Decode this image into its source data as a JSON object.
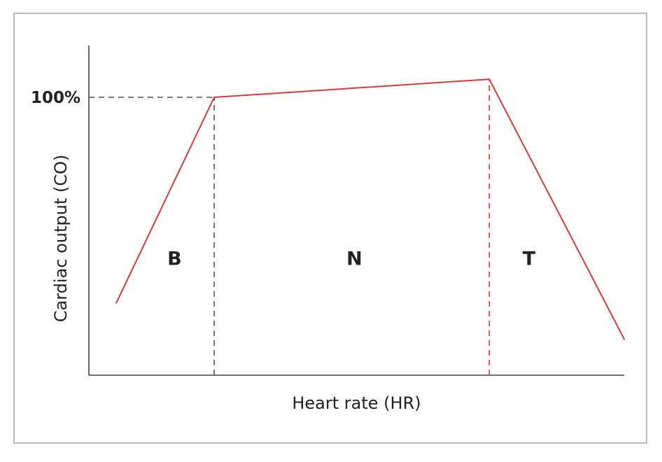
{
  "chart_data": {
    "type": "line",
    "xlabel": "Heart rate (HR)",
    "ylabel": "Cardiac output (CO)",
    "xlim": [
      0,
      100
    ],
    "ylim": [
      0,
      120
    ],
    "y_ticks": [
      {
        "value": 100,
        "label": "100%"
      }
    ],
    "grid": false,
    "series": [
      {
        "color": "#d93a3a",
        "points": [
          {
            "x": 4,
            "y": 26
          },
          {
            "x": 22.5,
            "y": 100
          },
          {
            "x": 74.5,
            "y": 106.5
          },
          {
            "x": 100,
            "y": 13
          }
        ]
      }
    ],
    "reference_lines": [
      {
        "kind": "horizontal",
        "y": 100,
        "x_from": 0,
        "x_to": 22.5,
        "style": "dashed",
        "color": "#555555"
      },
      {
        "kind": "vertical",
        "x": 22.5,
        "y_from": 0,
        "y_to": 100,
        "style": "dashed",
        "color": "#555555"
      },
      {
        "kind": "vertical",
        "x": 74.5,
        "y_from": 0,
        "y_to": 106.5,
        "style": "dashed",
        "color": "#d93a3a"
      }
    ],
    "regions": [
      {
        "label": "B",
        "x": 15,
        "y": 42
      },
      {
        "label": "N",
        "x": 49,
        "y": 42
      },
      {
        "label": "T",
        "x": 82,
        "y": 42
      }
    ]
  }
}
